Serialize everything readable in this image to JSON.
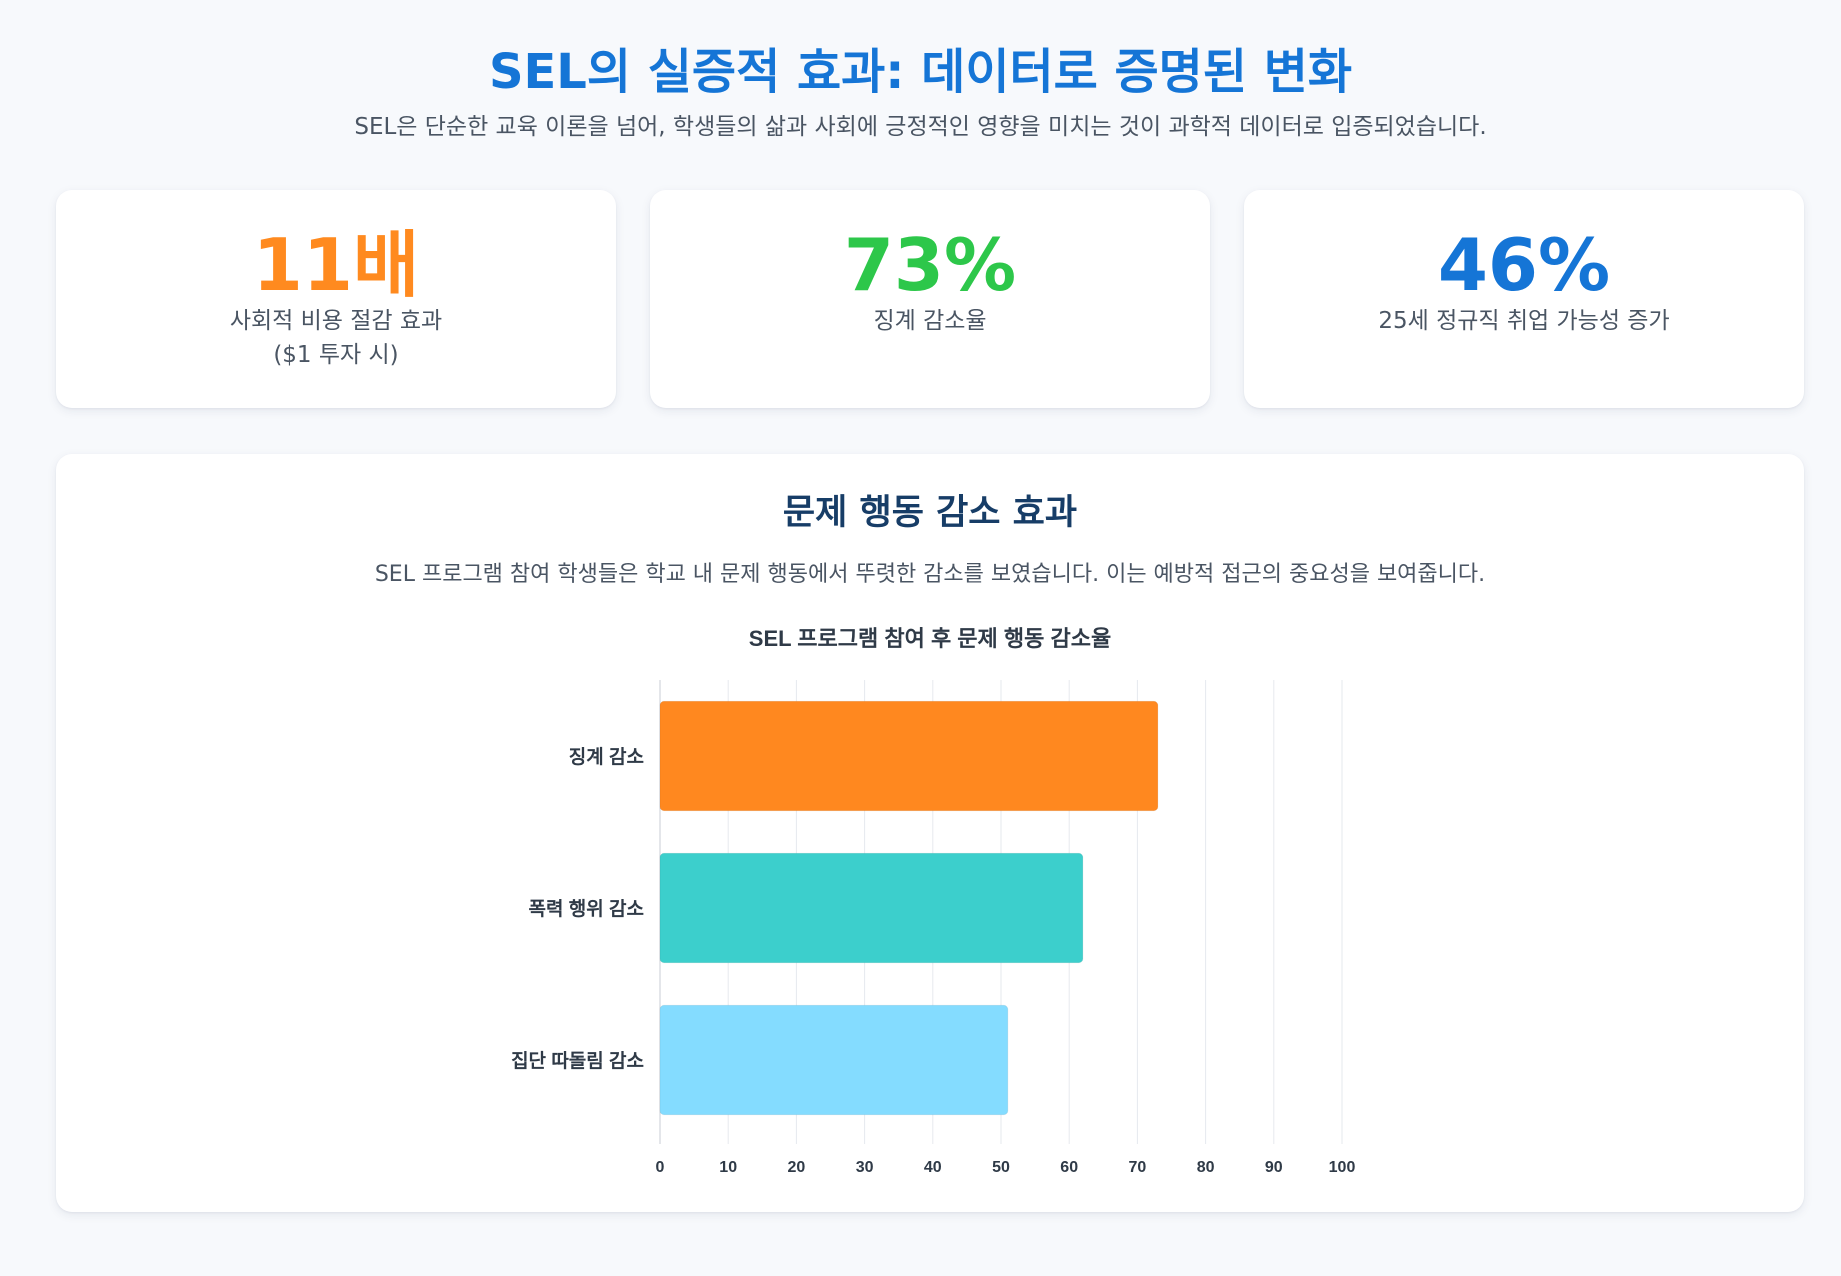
{
  "header": {
    "title": "SEL의 실증적 효과: 데이터로 증명된 변화",
    "subtitle": "SEL은 단순한 교육 이론을 넘어, 학생들의 삶과 사회에 긍정적인 영향을 미치는 것이 과학적 데이터로 입증되었습니다."
  },
  "stats": [
    {
      "value": "11배",
      "label": "사회적 비용 절감 효과\n($1 투자 시)",
      "color": "#ff8a1f"
    },
    {
      "value": "73%",
      "label": "징계 감소율",
      "color": "#2dc74a"
    },
    {
      "value": "46%",
      "label": "25세 정규직 취업 가능성 증가",
      "color": "#1575d6"
    }
  ],
  "section": {
    "title": "문제 행동 감소 효과",
    "description": "SEL 프로그램 참여 학생들은 학교 내 문제 행동에서 뚜렷한 감소를 보였습니다. 이는 예방적 접근의 중요성을 보여줍니다."
  },
  "chart_data": {
    "type": "bar",
    "orientation": "horizontal",
    "title": "SEL 프로그램 참여 후 문제 행동 감소율",
    "categories": [
      "징계 감소",
      "폭력 행위 감소",
      "집단 따돌림 감소"
    ],
    "values": [
      73,
      62,
      51
    ],
    "colors": [
      "#ff881f",
      "#3ccfcc",
      "#84dcff"
    ],
    "xlim": [
      0,
      100
    ],
    "x_ticks": [
      0,
      10,
      20,
      30,
      40,
      50,
      60,
      70,
      80,
      90,
      100
    ],
    "grid": true,
    "legend": "none"
  }
}
